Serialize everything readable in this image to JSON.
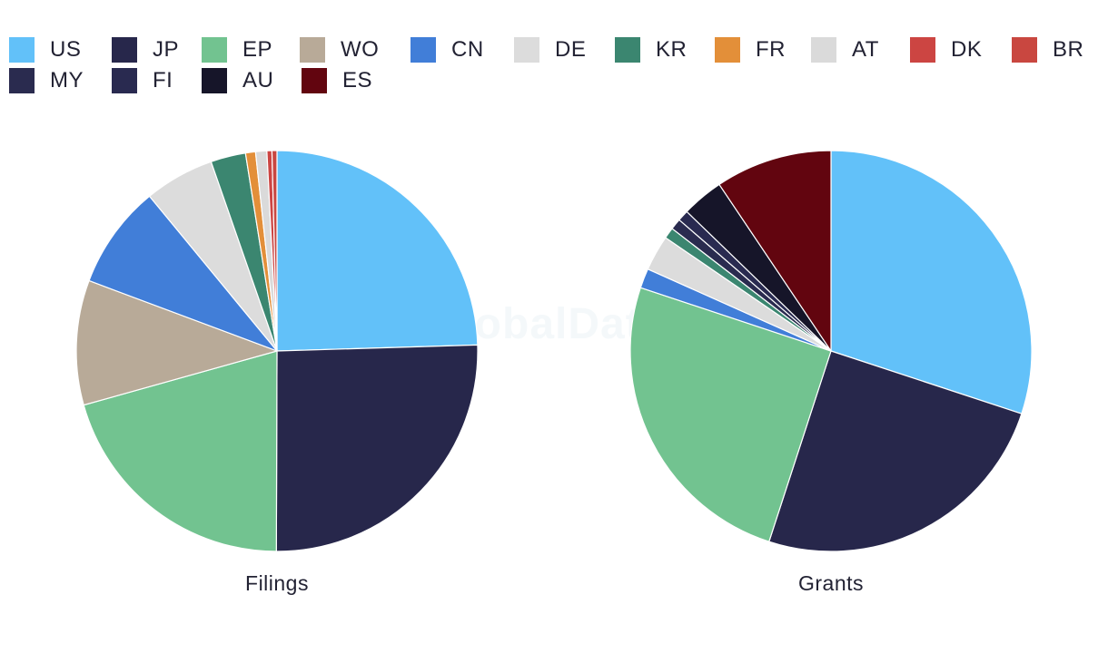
{
  "watermark": "GlobalData",
  "legend": [
    {
      "label": "US",
      "color": "#62c1f9"
    },
    {
      "label": "JP",
      "color": "#27274b"
    },
    {
      "label": "EP",
      "color": "#72c390"
    },
    {
      "label": "WO",
      "color": "#b8aa98"
    },
    {
      "label": "CN",
      "color": "#417ed8"
    },
    {
      "label": "DE",
      "color": "#dcdcdc"
    },
    {
      "label": "KR",
      "color": "#3b8670"
    },
    {
      "label": "FR",
      "color": "#e38f39"
    },
    {
      "label": "AT",
      "color": "#dadada"
    },
    {
      "label": "DK",
      "color": "#cc4542"
    },
    {
      "label": "BR",
      "color": "#c94740"
    },
    {
      "label": "MY",
      "color": "#2a2b4f"
    },
    {
      "label": "FI",
      "color": "#292a50"
    },
    {
      "label": "AU",
      "color": "#161529"
    },
    {
      "label": "ES",
      "color": "#62050f"
    }
  ],
  "chart_data": [
    {
      "type": "pie",
      "title": "Filings",
      "categories": [
        "US",
        "JP",
        "EP",
        "WO",
        "CN",
        "DE",
        "KR",
        "FR",
        "AT",
        "DK",
        "BR"
      ],
      "values": [
        24.4,
        25.4,
        20.5,
        10.0,
        8.3,
        5.6,
        2.8,
        0.8,
        0.9,
        0.4,
        0.4
      ],
      "unit": "% share (estimated)",
      "start_angle_deg": 0,
      "direction": "clockwise"
    },
    {
      "type": "pie",
      "title": "Grants",
      "categories": [
        "US",
        "JP",
        "EP",
        "CN",
        "DE",
        "KR",
        "MY",
        "FI",
        "AU",
        "ES"
      ],
      "values": [
        30.4,
        25.2,
        25.4,
        1.6,
        2.9,
        0.9,
        0.9,
        0.9,
        3.4,
        9.5
      ],
      "unit": "% share (estimated)",
      "start_angle_deg": 0,
      "direction": "clockwise"
    }
  ]
}
